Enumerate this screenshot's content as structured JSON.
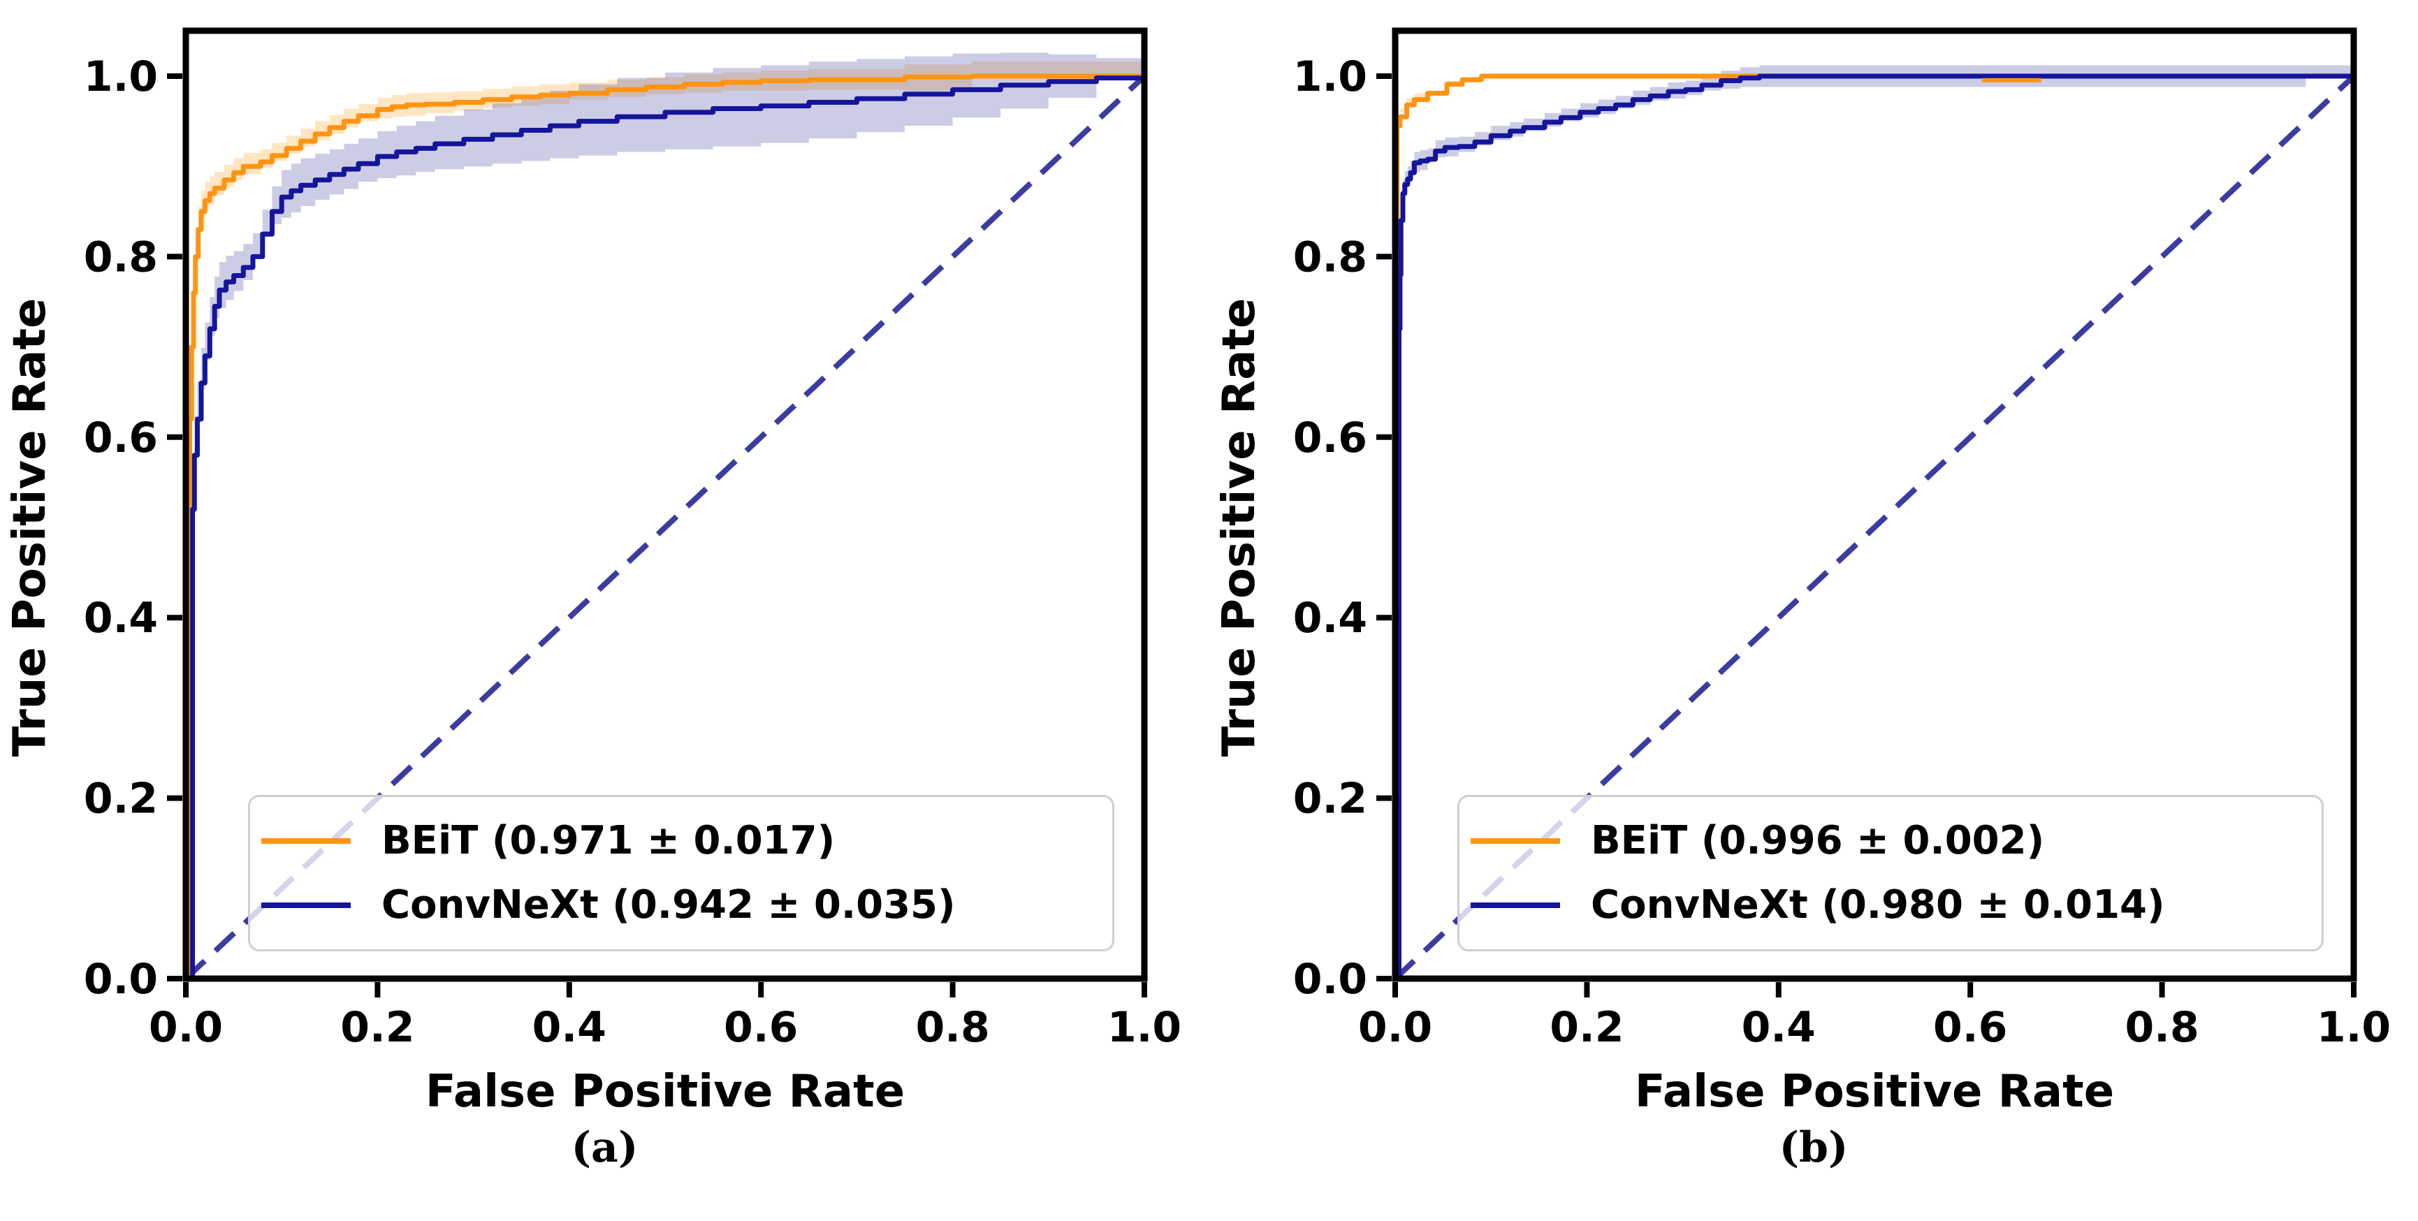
{
  "figure": {
    "background": "#ffffff",
    "text_color": "#000000",
    "axes_color": "#000000"
  },
  "chart_data": [
    {
      "type": "line",
      "title": "",
      "caption": "(a)",
      "xlabel": "False Positive Rate",
      "ylabel": "True Positive Rate",
      "xlim": [
        0,
        1.0
      ],
      "ylim": [
        0,
        1.05
      ],
      "xticks": [
        0,
        0.2,
        0.4,
        0.6,
        0.8,
        1.0
      ],
      "yticks": [
        0,
        0.2,
        0.4,
        0.6,
        0.8,
        1.0
      ],
      "grid": false,
      "legend_position": "lower center",
      "chance_line": {
        "style": "dashed",
        "color": "#3C3CA0",
        "from": [
          0,
          0
        ],
        "to": [
          1,
          1
        ]
      },
      "series": [
        {
          "name": "BEiT (0.971 ± 0.017)",
          "slug": "beit",
          "auc": 0.971,
          "auc_std": 0.017,
          "color": "#FF9412",
          "band_color": "rgba(255,165,40,0.28)",
          "x": [
            0,
            0.003,
            0.004,
            0.006,
            0.008,
            0.01,
            0.013,
            0.016,
            0.02,
            0.025,
            0.03,
            0.04,
            0.05,
            0.06,
            0.078,
            0.09,
            0.105,
            0.12,
            0.135,
            0.15,
            0.165,
            0.18,
            0.2,
            0.215,
            0.23,
            0.25,
            0.28,
            0.31,
            0.34,
            0.37,
            0.4,
            0.44,
            0.48,
            0.52,
            0.56,
            0.6,
            0.65,
            0.75,
            0.82,
            1.0
          ],
          "y": [
            0,
            0.52,
            0.62,
            0.7,
            0.76,
            0.8,
            0.83,
            0.85,
            0.862,
            0.87,
            0.876,
            0.885,
            0.893,
            0.9,
            0.905,
            0.912,
            0.92,
            0.928,
            0.936,
            0.943,
            0.95,
            0.956,
            0.963,
            0.966,
            0.968,
            0.969,
            0.971,
            0.974,
            0.977,
            0.979,
            0.981,
            0.985,
            0.988,
            0.991,
            0.993,
            0.995,
            0.996,
            0.999,
            1.0,
            1.0
          ],
          "band": [
            0,
            0.035,
            0.033,
            0.031,
            0.029,
            0.027,
            0.025,
            0.023,
            0.021,
            0.019,
            0.018,
            0.017,
            0.016,
            0.015,
            0.014,
            0.014,
            0.014,
            0.014,
            0.014,
            0.014,
            0.014,
            0.013,
            0.013,
            0.013,
            0.013,
            0.013,
            0.012,
            0.012,
            0.012,
            0.012,
            0.012,
            0.011,
            0.011,
            0.011,
            0.011,
            0.011,
            0.012,
            0.014,
            0.016,
            0
          ],
          "overlay_segments": []
        },
        {
          "name": "ConvNeXt (0.942 ± 0.035)",
          "slug": "convnext",
          "auc": 0.942,
          "auc_std": 0.035,
          "color": "#15159B",
          "band_color": "rgba(85,85,170,0.30)",
          "x": [
            0,
            0.007,
            0.009,
            0.012,
            0.016,
            0.02,
            0.025,
            0.03,
            0.035,
            0.042,
            0.05,
            0.06,
            0.07,
            0.08,
            0.09,
            0.1,
            0.11,
            0.12,
            0.135,
            0.15,
            0.165,
            0.18,
            0.2,
            0.22,
            0.24,
            0.26,
            0.29,
            0.32,
            0.35,
            0.38,
            0.41,
            0.45,
            0.5,
            0.55,
            0.6,
            0.65,
            0.7,
            0.75,
            0.8,
            0.85,
            0.9,
            0.95,
            1.0
          ],
          "y": [
            0,
            0.52,
            0.58,
            0.62,
            0.66,
            0.69,
            0.72,
            0.745,
            0.763,
            0.772,
            0.779,
            0.788,
            0.8,
            0.825,
            0.85,
            0.866,
            0.873,
            0.879,
            0.885,
            0.891,
            0.897,
            0.903,
            0.911,
            0.916,
            0.92,
            0.925,
            0.93,
            0.935,
            0.94,
            0.945,
            0.95,
            0.955,
            0.96,
            0.964,
            0.967,
            0.971,
            0.975,
            0.98,
            0.985,
            0.99,
            0.994,
            0.998,
            1.0
          ],
          "band": [
            0,
            0.045,
            0.043,
            0.041,
            0.039,
            0.037,
            0.035,
            0.033,
            0.031,
            0.029,
            0.027,
            0.026,
            0.026,
            0.027,
            0.028,
            0.03,
            0.03,
            0.03,
            0.029,
            0.028,
            0.028,
            0.028,
            0.028,
            0.029,
            0.03,
            0.031,
            0.033,
            0.035,
            0.037,
            0.039,
            0.041,
            0.043,
            0.044,
            0.045,
            0.045,
            0.045,
            0.044,
            0.042,
            0.04,
            0.036,
            0.03,
            0.022,
            0
          ],
          "overlay_segments": []
        }
      ]
    },
    {
      "type": "line",
      "title": "",
      "caption": "(b)",
      "xlabel": "False Positive Rate",
      "ylabel": "True Positive Rate",
      "xlim": [
        0,
        1.0
      ],
      "ylim": [
        0,
        1.05
      ],
      "xticks": [
        0,
        0.2,
        0.4,
        0.6,
        0.8,
        1.0
      ],
      "yticks": [
        0,
        0.2,
        0.4,
        0.6,
        0.8,
        1.0
      ],
      "grid": false,
      "legend_position": "lower center",
      "chance_line": {
        "style": "dashed",
        "color": "#3C3CA0",
        "from": [
          0,
          0
        ],
        "to": [
          1,
          1
        ]
      },
      "series": [
        {
          "name": "BEiT (0.996 ± 0.002)",
          "slug": "beit",
          "auc": 0.996,
          "auc_std": 0.002,
          "color": "#FF9412",
          "band_color": "rgba(255,165,40,0.28)",
          "x": [
            0,
            0.002,
            0.005,
            0.012,
            0.02,
            0.034,
            0.054,
            0.07,
            0.09,
            1.0
          ],
          "y": [
            0,
            0.945,
            0.955,
            0.968,
            0.974,
            0.981,
            0.991,
            0.996,
            1.0,
            1.0
          ],
          "band": [
            0,
            0.01,
            0.009,
            0.008,
            0.007,
            0.006,
            0.004,
            0.003,
            0.002,
            0
          ],
          "overlay_segments": [
            {
              "x1": 0.612,
              "x2": 0.674,
              "y": 0.9955
            }
          ]
        },
        {
          "name": "ConvNeXt (0.980 ± 0.014)",
          "slug": "convnext",
          "auc": 0.98,
          "auc_std": 0.014,
          "color": "#15159B",
          "band_color": "rgba(85,85,170,0.30)",
          "x": [
            0,
            0.004,
            0.005,
            0.006,
            0.008,
            0.01,
            0.013,
            0.016,
            0.02,
            0.026,
            0.034,
            0.042,
            0.052,
            0.066,
            0.083,
            0.1,
            0.12,
            0.134,
            0.156,
            0.173,
            0.193,
            0.212,
            0.23,
            0.248,
            0.266,
            0.285,
            0.303,
            0.32,
            0.34,
            0.36,
            0.38,
            0.95,
            1.0
          ],
          "y": [
            0,
            0.72,
            0.78,
            0.84,
            0.87,
            0.88,
            0.886,
            0.893,
            0.904,
            0.906,
            0.908,
            0.917,
            0.921,
            0.922,
            0.927,
            0.934,
            0.939,
            0.943,
            0.949,
            0.954,
            0.96,
            0.964,
            0.968,
            0.974,
            0.978,
            0.983,
            0.985,
            0.99,
            0.995,
            0.998,
            1.0,
            1.0,
            1.0
          ],
          "band": [
            0,
            0.018,
            0.018,
            0.018,
            0.016,
            0.015,
            0.014,
            0.013,
            0.012,
            0.012,
            0.012,
            0.012,
            0.011,
            0.011,
            0.011,
            0.011,
            0.01,
            0.01,
            0.01,
            0.01,
            0.01,
            0.01,
            0.01,
            0.01,
            0.01,
            0.01,
            0.01,
            0.011,
            0.011,
            0.012,
            0.012,
            0.012,
            0
          ],
          "overlay_segments": []
        }
      ]
    }
  ]
}
